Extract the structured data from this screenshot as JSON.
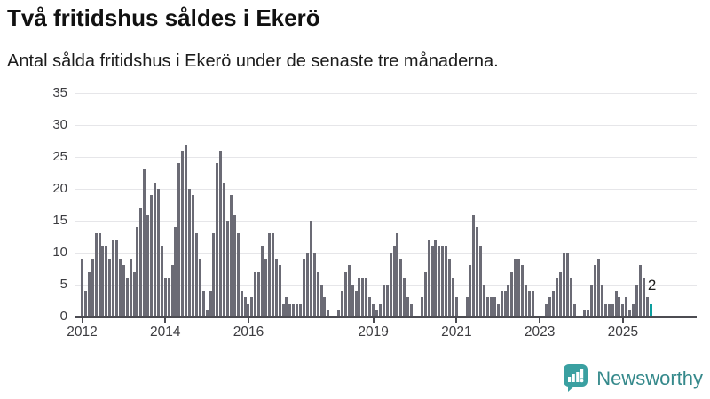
{
  "header": {
    "title": "Två fritidshus såldes i Ekerö",
    "subtitle": "Antal sålda fritidshus i Ekerö under de senaste tre månaderna."
  },
  "chart_data": {
    "type": "bar",
    "title": "Två fritidshus såldes i Ekerö",
    "subtitle": "Antal sålda fritidshus i Ekerö under de senaste tre månaderna.",
    "series_name": "Antal sålda fritidshus (rullande tre månader)",
    "frequency": "monthly",
    "start_month": "2012-01",
    "end_month": "2025-09",
    "ylim": [
      0,
      35
    ],
    "y_ticks": [
      0,
      5,
      10,
      15,
      20,
      25,
      30,
      35
    ],
    "x_tick_years": [
      "2012",
      "2014",
      "2016",
      "2019",
      "2021",
      "2023",
      "2025"
    ],
    "grid": true,
    "legend": "none",
    "bar_color": "#6b6b75",
    "highlight_color": "#0c9e9e",
    "highlight_last_bar": true,
    "last_value_label": "2",
    "values": [
      9,
      4,
      7,
      9,
      13,
      13,
      11,
      11,
      9,
      12,
      12,
      9,
      8,
      6,
      9,
      7,
      14,
      17,
      23,
      16,
      19,
      21,
      20,
      11,
      6,
      6,
      8,
      14,
      24,
      26,
      27,
      20,
      19,
      13,
      9,
      4,
      1,
      4,
      13,
      24,
      26,
      21,
      15,
      19,
      16,
      13,
      4,
      3,
      2,
      3,
      7,
      7,
      11,
      9,
      13,
      13,
      9,
      8,
      2,
      3,
      2,
      2,
      2,
      2,
      9,
      10,
      15,
      10,
      7,
      5,
      3,
      1,
      0,
      0,
      1,
      4,
      7,
      8,
      5,
      4,
      6,
      6,
      6,
      3,
      2,
      1,
      2,
      5,
      5,
      10,
      11,
      13,
      9,
      6,
      3,
      2,
      0,
      0,
      3,
      7,
      12,
      11,
      12,
      11,
      11,
      11,
      9,
      6,
      3,
      0,
      0,
      3,
      8,
      16,
      14,
      11,
      5,
      3,
      3,
      3,
      2,
      4,
      4,
      5,
      7,
      9,
      9,
      8,
      5,
      4,
      4,
      0,
      0,
      0,
      2,
      3,
      4,
      6,
      7,
      10,
      10,
      6,
      2,
      0,
      0,
      1,
      1,
      5,
      8,
      9,
      5,
      2,
      2,
      2,
      4,
      3,
      2,
      3,
      1,
      2,
      5,
      8,
      6,
      3,
      2
    ]
  },
  "branding": {
    "name": "Newsworthy",
    "logo_icon": "bar-chart-speech-bubble",
    "logo_color": "#3aa0a1",
    "text_color": "#35898b"
  }
}
